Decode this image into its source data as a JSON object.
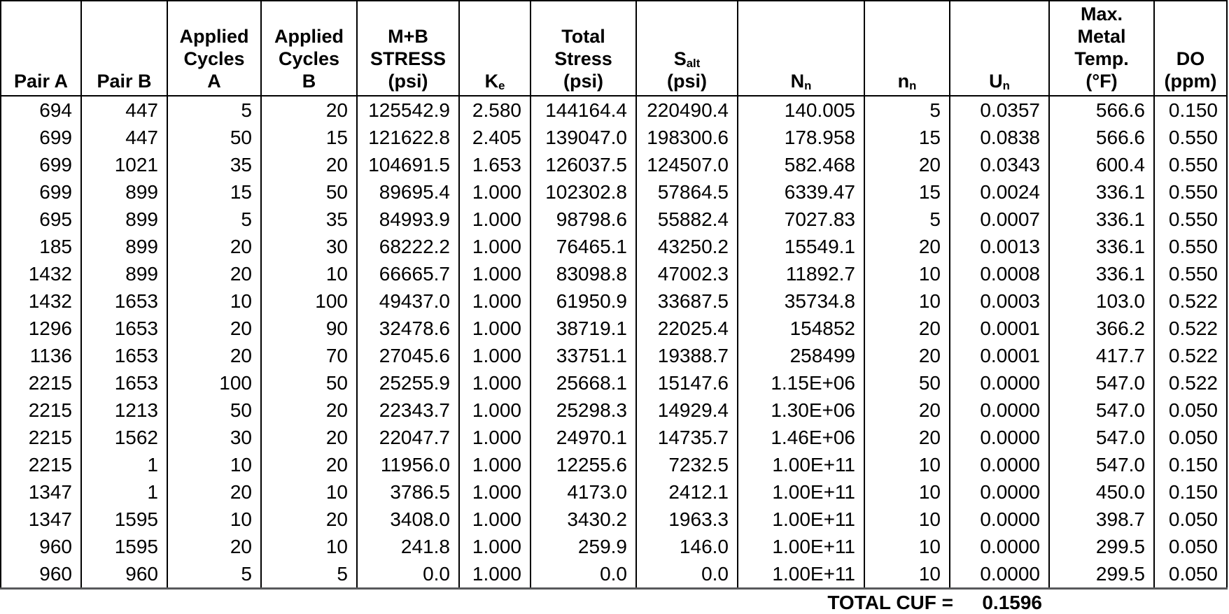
{
  "table": {
    "columns": [
      {
        "id": "pair-a",
        "label": "Pair A"
      },
      {
        "id": "pair-b",
        "label": "Pair B"
      },
      {
        "id": "applied-cycles-a",
        "label": "Applied\nCycles\nA"
      },
      {
        "id": "applied-cycles-b",
        "label": "Applied\nCycles\nB"
      },
      {
        "id": "mb-stress-psi",
        "label": "M+B\nSTRESS\n(psi)"
      },
      {
        "id": "ke",
        "label": "K_{e}"
      },
      {
        "id": "total-stress-psi",
        "label": "Total\nStress\n(psi)"
      },
      {
        "id": "s-alt-psi",
        "label": "S_{alt}\n(psi)"
      },
      {
        "id": "n-n",
        "label": "N_{n}"
      },
      {
        "id": "n-n-applied",
        "label": "n_{n}"
      },
      {
        "id": "u-n",
        "label": "U_{n}"
      },
      {
        "id": "max-metal-temp-f",
        "label": "Max.\nMetal\nTemp.\n(°F)"
      },
      {
        "id": "do-ppm",
        "label": "DO\n(ppm)"
      }
    ],
    "rows": [
      [
        "694",
        "447",
        "5",
        "20",
        "125542.9",
        "2.580",
        "144164.4",
        "220490.4",
        "140.005",
        "5",
        "0.0357",
        "566.6",
        "0.150"
      ],
      [
        "699",
        "447",
        "50",
        "15",
        "121622.8",
        "2.405",
        "139047.0",
        "198300.6",
        "178.958",
        "15",
        "0.0838",
        "566.6",
        "0.550"
      ],
      [
        "699",
        "1021",
        "35",
        "20",
        "104691.5",
        "1.653",
        "126037.5",
        "124507.0",
        "582.468",
        "20",
        "0.0343",
        "600.4",
        "0.550"
      ],
      [
        "699",
        "899",
        "15",
        "50",
        "89695.4",
        "1.000",
        "102302.8",
        "57864.5",
        "6339.47",
        "15",
        "0.0024",
        "336.1",
        "0.550"
      ],
      [
        "695",
        "899",
        "5",
        "35",
        "84993.9",
        "1.000",
        "98798.6",
        "55882.4",
        "7027.83",
        "5",
        "0.0007",
        "336.1",
        "0.550"
      ],
      [
        "185",
        "899",
        "20",
        "30",
        "68222.2",
        "1.000",
        "76465.1",
        "43250.2",
        "15549.1",
        "20",
        "0.0013",
        "336.1",
        "0.550"
      ],
      [
        "1432",
        "899",
        "20",
        "10",
        "66665.7",
        "1.000",
        "83098.8",
        "47002.3",
        "11892.7",
        "10",
        "0.0008",
        "336.1",
        "0.550"
      ],
      [
        "1432",
        "1653",
        "10",
        "100",
        "49437.0",
        "1.000",
        "61950.9",
        "33687.5",
        "35734.8",
        "10",
        "0.0003",
        "103.0",
        "0.522"
      ],
      [
        "1296",
        "1653",
        "20",
        "90",
        "32478.6",
        "1.000",
        "38719.1",
        "22025.4",
        "154852",
        "20",
        "0.0001",
        "366.2",
        "0.522"
      ],
      [
        "1136",
        "1653",
        "20",
        "70",
        "27045.6",
        "1.000",
        "33751.1",
        "19388.7",
        "258499",
        "20",
        "0.0001",
        "417.7",
        "0.522"
      ],
      [
        "2215",
        "1653",
        "100",
        "50",
        "25255.9",
        "1.000",
        "25668.1",
        "15147.6",
        "1.15E+06",
        "50",
        "0.0000",
        "547.0",
        "0.522"
      ],
      [
        "2215",
        "1213",
        "50",
        "20",
        "22343.7",
        "1.000",
        "25298.3",
        "14929.4",
        "1.30E+06",
        "20",
        "0.0000",
        "547.0",
        "0.050"
      ],
      [
        "2215",
        "1562",
        "30",
        "20",
        "22047.7",
        "1.000",
        "24970.1",
        "14735.7",
        "1.46E+06",
        "20",
        "0.0000",
        "547.0",
        "0.050"
      ],
      [
        "2215",
        "1",
        "10",
        "20",
        "11956.0",
        "1.000",
        "12255.6",
        "7232.5",
        "1.00E+11",
        "10",
        "0.0000",
        "547.0",
        "0.150"
      ],
      [
        "1347",
        "1",
        "20",
        "10",
        "3786.5",
        "1.000",
        "4173.0",
        "2412.1",
        "1.00E+11",
        "10",
        "0.0000",
        "450.0",
        "0.150"
      ],
      [
        "1347",
        "1595",
        "10",
        "20",
        "3408.0",
        "1.000",
        "3430.2",
        "1963.3",
        "1.00E+11",
        "10",
        "0.0000",
        "398.7",
        "0.050"
      ],
      [
        "960",
        "1595",
        "20",
        "10",
        "241.8",
        "1.000",
        "259.9",
        "146.0",
        "1.00E+11",
        "10",
        "0.0000",
        "299.5",
        "0.050"
      ],
      [
        "960",
        "960",
        "5",
        "5",
        "0.0",
        "1.000",
        "0.0",
        "0.0",
        "1.00E+11",
        "10",
        "0.0000",
        "299.5",
        "0.050"
      ]
    ],
    "total_label": "TOTAL CUF =",
    "total_value": "0.1596"
  },
  "colors": {
    "text": "#000000",
    "border": "#000000",
    "bottom_rule": "#58595b",
    "background": "#ffffff"
  }
}
